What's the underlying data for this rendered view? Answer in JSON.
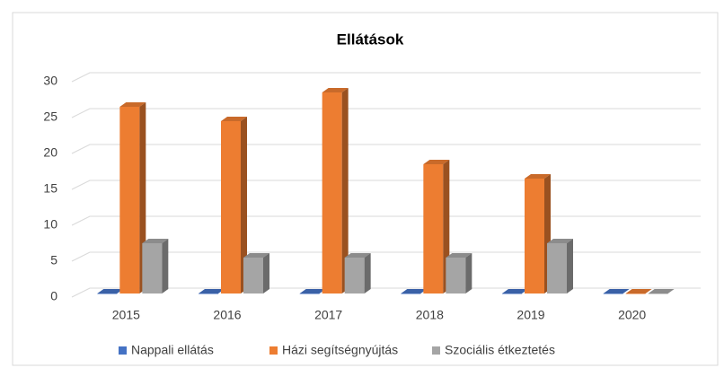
{
  "chart_data": {
    "type": "bar3d",
    "title": "Ellátások",
    "categories": [
      "2015",
      "2016",
      "2017",
      "2018",
      "2019",
      "2020"
    ],
    "series": [
      {
        "name": "Nappali ellátás",
        "color": "#4472c4",
        "values": [
          0,
          0,
          0,
          0,
          0,
          0
        ]
      },
      {
        "name": "Házi segítségnyújtás",
        "color": "#ed7d31",
        "values": [
          26,
          24,
          28,
          18,
          16,
          0
        ]
      },
      {
        "name": "Szociális étkeztetés",
        "color": "#a5a5a5",
        "values": [
          7,
          5,
          5,
          5,
          7,
          0
        ]
      }
    ],
    "ylim": [
      0,
      30
    ],
    "yticks": [
      0,
      5,
      10,
      15,
      20,
      25,
      30
    ],
    "grid": true,
    "legend": "bottom"
  }
}
